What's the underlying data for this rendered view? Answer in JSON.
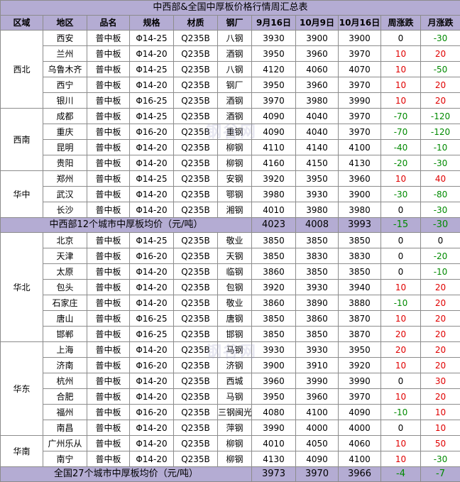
{
  "title": "中西部&全国中厚板价格行情周汇总表",
  "headers": [
    "区域",
    "地区",
    "品名",
    "规格",
    "材质",
    "钢厂",
    "9月16日",
    "10月9日",
    "10月16日",
    "周涨跌",
    "月涨跌"
  ],
  "groups": [
    {
      "region": "西北",
      "rows": [
        {
          "city": "西安",
          "product": "普中板",
          "spec": "Φ14-25",
          "material": "Q235B",
          "mill": "八钢",
          "p1": "3930",
          "p2": "3900",
          "p3": "3900",
          "week": "0",
          "month": "-30"
        },
        {
          "city": "兰州",
          "product": "普中板",
          "spec": "Φ14-20",
          "material": "Q235B",
          "mill": "酒钢",
          "p1": "3950",
          "p2": "3960",
          "p3": "3970",
          "week": "10",
          "month": "20"
        },
        {
          "city": "乌鲁木齐",
          "product": "普中板",
          "spec": "Φ14-25",
          "material": "Q235B",
          "mill": "八钢",
          "p1": "4120",
          "p2": "4060",
          "p3": "4070",
          "week": "10",
          "month": "-50"
        },
        {
          "city": "西宁",
          "product": "普中板",
          "spec": "Φ14-20",
          "material": "Q235B",
          "mill": "钢厂",
          "p1": "3950",
          "p2": "3960",
          "p3": "3970",
          "week": "10",
          "month": "20"
        },
        {
          "city": "银川",
          "product": "普中板",
          "spec": "Φ16-25",
          "material": "Q235B",
          "mill": "酒钢",
          "p1": "3970",
          "p2": "3980",
          "p3": "3990",
          "week": "10",
          "month": "20"
        }
      ]
    },
    {
      "region": "西南",
      "rows": [
        {
          "city": "成都",
          "product": "普中板",
          "spec": "Φ14-25",
          "material": "Q235B",
          "mill": "酒钢",
          "p1": "4090",
          "p2": "4040",
          "p3": "3970",
          "week": "-70",
          "month": "-120"
        },
        {
          "city": "重庆",
          "product": "普中板",
          "spec": "Φ16-20",
          "material": "Q235B",
          "mill": "重钢",
          "p1": "4090",
          "p2": "4040",
          "p3": "3970",
          "week": "-70",
          "month": "-120"
        },
        {
          "city": "昆明",
          "product": "普中板",
          "spec": "Φ14-20",
          "material": "Q235B",
          "mill": "柳钢",
          "p1": "4110",
          "p2": "4140",
          "p3": "4100",
          "week": "-40",
          "month": "-10"
        },
        {
          "city": "贵阳",
          "product": "普中板",
          "spec": "Φ14-20",
          "material": "Q235B",
          "mill": "柳钢",
          "p1": "4160",
          "p2": "4150",
          "p3": "4130",
          "week": "-20",
          "month": "-30"
        }
      ]
    },
    {
      "region": "华中",
      "rows": [
        {
          "city": "郑州",
          "product": "普中板",
          "spec": "Φ14-25",
          "material": "Q235B",
          "mill": "安钢",
          "p1": "3920",
          "p2": "3950",
          "p3": "3960",
          "week": "10",
          "month": "40"
        },
        {
          "city": "武汉",
          "product": "普中板",
          "spec": "Φ14-20",
          "material": "Q235B",
          "mill": "鄂钢",
          "p1": "3980",
          "p2": "3930",
          "p3": "3900",
          "week": "-30",
          "month": "-80"
        },
        {
          "city": "长沙",
          "product": "普中板",
          "spec": "Φ14-20",
          "material": "Q235B",
          "mill": "湘钢",
          "p1": "4010",
          "p2": "3980",
          "p3": "3980",
          "week": "0",
          "month": "-30"
        }
      ]
    }
  ],
  "summary1": {
    "label": "中西部12个城市中厚板均价（元/吨）",
    "p1": "4023",
    "p2": "4008",
    "p3": "3993",
    "week": "-15",
    "month": "-30"
  },
  "groups2": [
    {
      "region": "华北",
      "rows": [
        {
          "city": "北京",
          "product": "普中板",
          "spec": "Φ14-25",
          "material": "Q235B",
          "mill": "敬业",
          "p1": "3850",
          "p2": "3850",
          "p3": "3850",
          "week": "0",
          "month": "0"
        },
        {
          "city": "天津",
          "product": "普中板",
          "spec": "Φ16-20",
          "material": "Q235B",
          "mill": "天钢",
          "p1": "3850",
          "p2": "3830",
          "p3": "3830",
          "week": "0",
          "month": "-20"
        },
        {
          "city": "太原",
          "product": "普中板",
          "spec": "Φ14-20",
          "material": "Q235B",
          "mill": "临钢",
          "p1": "3860",
          "p2": "3850",
          "p3": "3850",
          "week": "0",
          "month": "-10"
        },
        {
          "city": "包头",
          "product": "普中板",
          "spec": "Φ14-20",
          "material": "Q235B",
          "mill": "包钢",
          "p1": "3920",
          "p2": "3930",
          "p3": "3940",
          "week": "10",
          "month": "20"
        },
        {
          "city": "石家庄",
          "product": "普中板",
          "spec": "Φ14-20",
          "material": "Q235B",
          "mill": "敬业",
          "p1": "3860",
          "p2": "3890",
          "p3": "3880",
          "week": "-10",
          "month": "20"
        },
        {
          "city": "唐山",
          "product": "普中板",
          "spec": "Φ16-25",
          "material": "Q235B",
          "mill": "唐钢",
          "p1": "3850",
          "p2": "3860",
          "p3": "3870",
          "week": "10",
          "month": "20"
        },
        {
          "city": "邯郸",
          "product": "普中板",
          "spec": "Φ16-25",
          "material": "Q235B",
          "mill": "邯钢",
          "p1": "3850",
          "p2": "3850",
          "p3": "3870",
          "week": "20",
          "month": "20"
        }
      ]
    },
    {
      "region": "华东",
      "rows": [
        {
          "city": "上海",
          "product": "普中板",
          "spec": "Φ14-20",
          "material": "Q235B",
          "mill": "马钢",
          "p1": "3930",
          "p2": "3930",
          "p3": "3950",
          "week": "20",
          "month": "20"
        },
        {
          "city": "济南",
          "product": "普中板",
          "spec": "Φ16-20",
          "material": "Q235B",
          "mill": "济钢",
          "p1": "3900",
          "p2": "3910",
          "p3": "3920",
          "week": "10",
          "month": "20"
        },
        {
          "city": "杭州",
          "product": "普中板",
          "spec": "Φ14-20",
          "material": "Q235B",
          "mill": "西城",
          "p1": "3960",
          "p2": "3990",
          "p3": "3990",
          "week": "0",
          "month": "30"
        },
        {
          "city": "合肥",
          "product": "普中板",
          "spec": "Φ14-20",
          "material": "Q235B",
          "mill": "马钢",
          "p1": "3950",
          "p2": "3960",
          "p3": "3970",
          "week": "10",
          "month": "20"
        },
        {
          "city": "福州",
          "product": "普中板",
          "spec": "Φ16-20",
          "material": "Q235B",
          "mill": "三钢闽光",
          "p1": "4080",
          "p2": "4100",
          "p3": "4090",
          "week": "-10",
          "month": "10"
        },
        {
          "city": "南昌",
          "product": "普中板",
          "spec": "Φ14-20",
          "material": "Q235B",
          "mill": "萍钢",
          "p1": "3990",
          "p2": "4000",
          "p3": "4000",
          "week": "0",
          "month": "10"
        }
      ]
    },
    {
      "region": "华南",
      "rows": [
        {
          "city": "广州乐从",
          "product": "普中板",
          "spec": "Φ14-20",
          "material": "Q235B",
          "mill": "柳钢",
          "p1": "4010",
          "p2": "4050",
          "p3": "4060",
          "week": "10",
          "month": "50"
        },
        {
          "city": "南宁",
          "product": "普中板",
          "spec": "Φ14-20",
          "material": "Q235B",
          "mill": "柳钢",
          "p1": "4130",
          "p2": "4090",
          "p3": "4100",
          "week": "10",
          "month": "-30"
        }
      ]
    }
  ],
  "summary2": {
    "label": "全国27个城市中厚板均价（元/吨）",
    "p1": "3973",
    "p2": "3970",
    "p3": "3966",
    "week": "-4",
    "month": "-7"
  },
  "watermark": "钢谷网",
  "colors": {
    "header_bg": "#b4acd3",
    "up": "#e00000",
    "down": "#008a00"
  }
}
